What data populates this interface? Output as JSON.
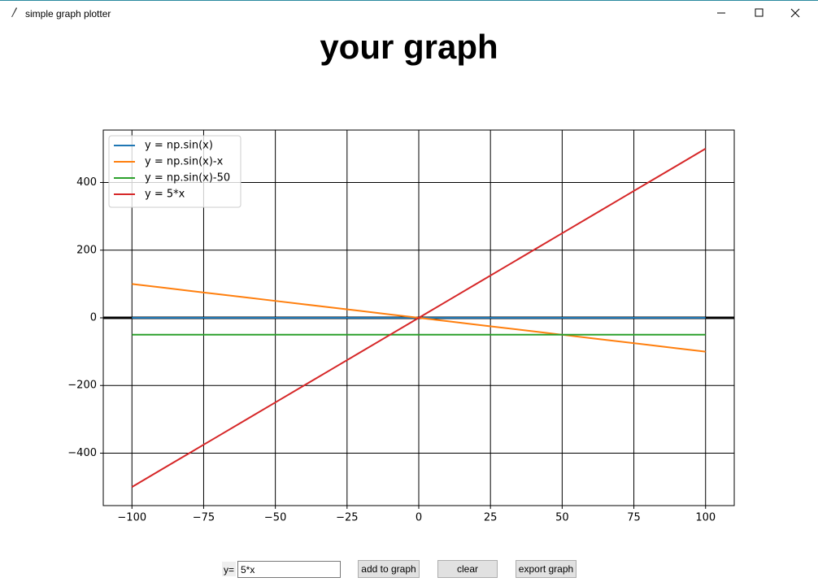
{
  "window": {
    "title": "simple graph plotter"
  },
  "heading": "your graph",
  "chart_data": {
    "type": "line",
    "x": [
      -100,
      -90,
      -80,
      -70,
      -60,
      -50,
      -40,
      -30,
      -20,
      -10,
      0,
      10,
      20,
      30,
      40,
      50,
      60,
      70,
      80,
      90,
      100
    ],
    "series": [
      {
        "name": "y = np.sin(x)",
        "color": "#1f77b4",
        "values": [
          0,
          0,
          0,
          0,
          0,
          0,
          0,
          0,
          0,
          0,
          0,
          0,
          0,
          0,
          0,
          0,
          0,
          0,
          0,
          0,
          0
        ]
      },
      {
        "name": "y = np.sin(x)-x",
        "color": "#ff7f0e",
        "values": [
          100,
          90,
          80,
          70,
          60,
          50,
          40,
          30,
          20,
          10,
          0,
          -10,
          -20,
          -30,
          -40,
          -50,
          -60,
          -70,
          -80,
          -90,
          -100
        ]
      },
      {
        "name": "y = np.sin(x)-50",
        "color": "#2ca02c",
        "values": [
          -50,
          -50,
          -50,
          -50,
          -50,
          -50,
          -50,
          -50,
          -50,
          -50,
          -50,
          -50,
          -50,
          -50,
          -50,
          -50,
          -50,
          -50,
          -50,
          -50,
          -50
        ]
      },
      {
        "name": "y = 5*x",
        "color": "#d62728",
        "values": [
          -500,
          -450,
          -400,
          -350,
          -300,
          -250,
          -200,
          -150,
          -100,
          -50,
          0,
          50,
          100,
          150,
          200,
          250,
          300,
          350,
          400,
          450,
          500
        ]
      }
    ],
    "xlim": [
      -110,
      110
    ],
    "ylim": [
      -555,
      555
    ],
    "xticks": [
      {
        "value": -100,
        "label": "−100"
      },
      {
        "value": -75,
        "label": "−75"
      },
      {
        "value": -50,
        "label": "−50"
      },
      {
        "value": -25,
        "label": "−25"
      },
      0,
      25,
      50,
      75,
      100
    ],
    "yticks": [
      {
        "value": -400,
        "label": "−400"
      },
      {
        "value": -200,
        "label": "−200"
      },
      0,
      200,
      400
    ],
    "grid": true,
    "hline": 0,
    "legend": "upper-left"
  },
  "controls": {
    "input_label": "y=",
    "input_value": "5*x",
    "buttons": [
      "add to graph",
      "clear",
      "export graph"
    ]
  }
}
